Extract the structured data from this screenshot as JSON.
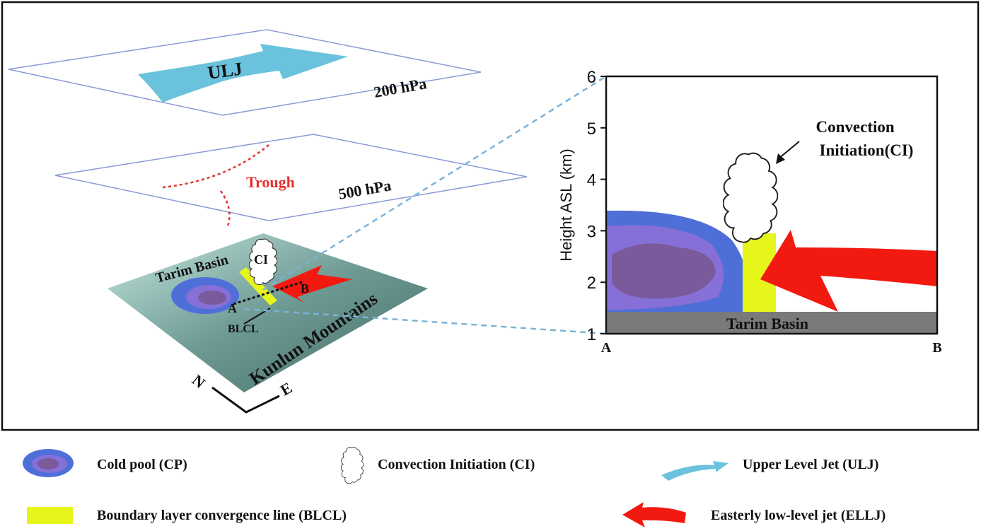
{
  "left_panel": {
    "upper_level": {
      "jet_label": "ULJ",
      "pressure": "200 hPa"
    },
    "mid_level": {
      "trough_label": "Trough",
      "pressure": "500 hPa"
    },
    "surface": {
      "basin": "Tarim Basin",
      "ci": "CI",
      "point_a": "A",
      "point_b": "B",
      "blcl": "BLCL",
      "mountains": "Kunlun Mountains",
      "north": "N",
      "east": "E"
    }
  },
  "cross_section": {
    "y_axis_label": "Height ASL (km)",
    "yticks": [
      1,
      2,
      3,
      4,
      5,
      6
    ],
    "ci_label": [
      "Convection",
      "Initiation(CI)"
    ],
    "ground_label": "Tarim Basin",
    "x_start": "A",
    "x_end": "B"
  },
  "legend": [
    {
      "label": "Cold pool (CP)"
    },
    {
      "label": "Convection Initiation (CI)"
    },
    {
      "label": "Upper Level Jet (ULJ)"
    },
    {
      "label": "Boundary layer convergence line (BLCL)"
    },
    {
      "label": "Easterly low-level jet (ELLJ)"
    }
  ]
}
